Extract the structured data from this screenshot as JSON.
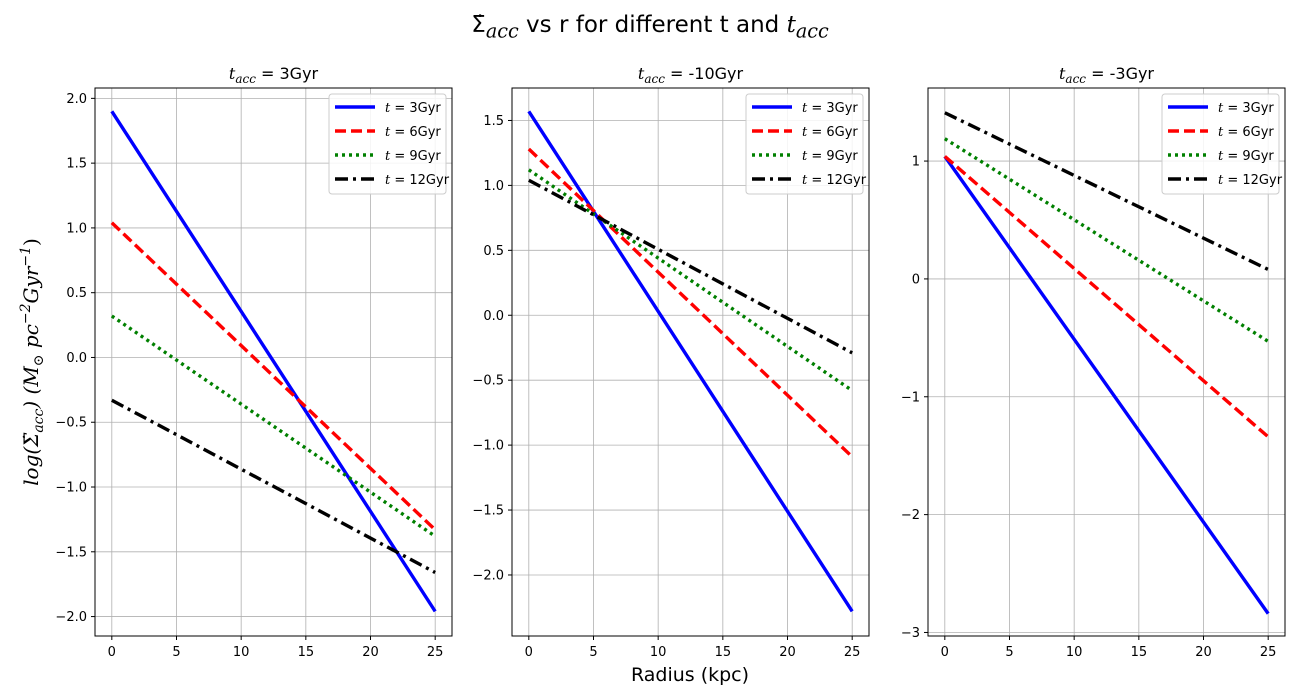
{
  "figure": {
    "title": "Σ̇acc vs r for different t and tacc",
    "xlabel": "Radius (kpc)",
    "ylabel": "log(Σ̇acc) (M⊙ pc−2Gyr−1)"
  },
  "chart_data": [
    {
      "type": "line",
      "title": "tacc = 3Gyr",
      "x": [
        0,
        25
      ],
      "xlim": [
        -1.3,
        26.3
      ],
      "ylim": [
        -2.15,
        2.08
      ],
      "xticks": [
        0,
        5,
        10,
        15,
        20,
        25
      ],
      "yticks": [
        -2.0,
        -1.5,
        -1.0,
        -0.5,
        0.0,
        0.5,
        1.0,
        1.5,
        2.0
      ],
      "ytick_labels": [
        "−2.0",
        "−1.5",
        "−1.0",
        "−0.5",
        "0.0",
        "0.5",
        "1.0",
        "1.5",
        "2.0"
      ],
      "grid": true,
      "legend_position": "upper-right",
      "series": [
        {
          "name": "t = 3Gyr",
          "color": "#0000ff",
          "style": "solid",
          "values": [
            1.9,
            -1.96
          ]
        },
        {
          "name": "t = 6Gyr",
          "color": "#ff0000",
          "style": "dashed",
          "values": [
            1.04,
            -1.33
          ]
        },
        {
          "name": "t = 9Gyr",
          "color": "#008000",
          "style": "dotted",
          "values": [
            0.32,
            -1.38
          ]
        },
        {
          "name": "t = 12Gyr",
          "color": "#000000",
          "style": "dashdot",
          "values": [
            -0.33,
            -1.66
          ]
        }
      ]
    },
    {
      "type": "line",
      "title": "tacc = -10Gyr",
      "x": [
        0,
        25
      ],
      "xlim": [
        -1.3,
        26.3
      ],
      "ylim": [
        -2.47,
        1.75
      ],
      "xticks": [
        0,
        5,
        10,
        15,
        20,
        25
      ],
      "yticks": [
        -2.0,
        -1.5,
        -1.0,
        -0.5,
        0.0,
        0.5,
        1.0,
        1.5
      ],
      "ytick_labels": [
        "−2.0",
        "−1.5",
        "−1.0",
        "−0.5",
        "0.0",
        "0.5",
        "1.0",
        "1.5"
      ],
      "grid": true,
      "legend_position": "upper-right",
      "series": [
        {
          "name": "t = 3Gyr",
          "color": "#0000ff",
          "style": "solid",
          "values": [
            1.57,
            -2.28
          ]
        },
        {
          "name": "t = 6Gyr",
          "color": "#ff0000",
          "style": "dashed",
          "values": [
            1.28,
            -1.09
          ]
        },
        {
          "name": "t = 9Gyr",
          "color": "#008000",
          "style": "dotted",
          "values": [
            1.12,
            -0.58
          ]
        },
        {
          "name": "t = 12Gyr",
          "color": "#000000",
          "style": "dashdot",
          "values": [
            1.04,
            -0.29
          ]
        }
      ]
    },
    {
      "type": "line",
      "title": "tacc = -3Gyr",
      "x": [
        0,
        25
      ],
      "xlim": [
        -1.3,
        26.3
      ],
      "ylim": [
        -3.03,
        1.62
      ],
      "xticks": [
        0,
        5,
        10,
        15,
        20,
        25
      ],
      "yticks": [
        -3,
        -2,
        -1,
        0,
        1
      ],
      "ytick_labels": [
        "−3",
        "−2",
        "−1",
        "0",
        "1"
      ],
      "grid": true,
      "legend_position": "upper-right",
      "series": [
        {
          "name": "t = 3Gyr",
          "color": "#0000ff",
          "style": "solid",
          "values": [
            1.04,
            -2.84
          ]
        },
        {
          "name": "t = 6Gyr",
          "color": "#ff0000",
          "style": "dashed",
          "values": [
            1.04,
            -1.34
          ]
        },
        {
          "name": "t = 9Gyr",
          "color": "#008000",
          "style": "dotted",
          "values": [
            1.19,
            -0.53
          ]
        },
        {
          "name": "t = 12Gyr",
          "color": "#000000",
          "style": "dashdot",
          "values": [
            1.41,
            0.08
          ]
        }
      ]
    }
  ]
}
